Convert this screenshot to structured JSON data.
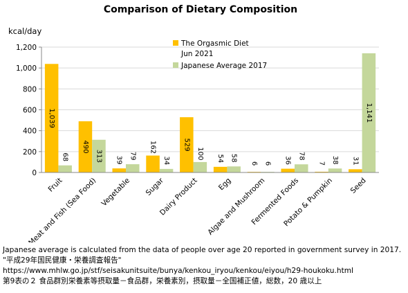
{
  "chart_data": {
    "type": "bar",
    "title": "Comparison of Dietary Composition",
    "ylabel": "kcal/day",
    "xlabel": "",
    "ylim": [
      0,
      1200
    ],
    "yticks": [
      0,
      200,
      400,
      600,
      800,
      1000,
      1200
    ],
    "ytick_labels": [
      "0",
      "200",
      "400",
      "600",
      "800",
      "1,000",
      "1,200"
    ],
    "grid": "horizontal",
    "legend_position": "top-center",
    "categories": [
      "Fruit",
      "Meat and Fish (Sea Food)",
      "Vegetable",
      "Sugar",
      "Dairy Product",
      "Egg",
      "Algae and Mushroom",
      "Fermented Foods",
      "Potato & Pumpkin",
      "Seed"
    ],
    "series": [
      {
        "name": "The Orgasmic Diet Jun 2021",
        "legend_lines": [
          "The Orgasmic Diet",
          "Jun 2021"
        ],
        "color": "#FFC000",
        "values": [
          1039,
          490,
          39,
          162,
          529,
          54,
          6,
          36,
          7,
          31
        ],
        "labels": [
          "1,039",
          "490",
          "39",
          "162",
          "529",
          "54",
          "6",
          "36",
          "7",
          "31"
        ]
      },
      {
        "name": "Japanese Average 2017",
        "legend_lines": [
          "Japanese Average 2017"
        ],
        "color": "#C4D79B",
        "values": [
          68,
          313,
          79,
          34,
          100,
          58,
          6,
          78,
          38,
          1141
        ],
        "labels": [
          "68",
          "313",
          "79",
          "34",
          "100",
          "58",
          "6",
          "78",
          "38",
          "1,141"
        ]
      }
    ]
  },
  "notes": {
    "line1": "Japanese average is calculated from the data of people over age 20 reported in government survey in 2017.",
    "line2": "\"平成29年国民健康・栄養調査報告\"",
    "line3": "https://www.mhlw.go.jp/stf/seisakunitsuite/bunya/kenkou_iryou/kenkou/eiyou/h29-houkoku.html",
    "line4": "第9表の２ 食品群別栄養素等摂取量－食品群，栄養素別，摂取量－全国補正値，総数，20 歳以上"
  }
}
